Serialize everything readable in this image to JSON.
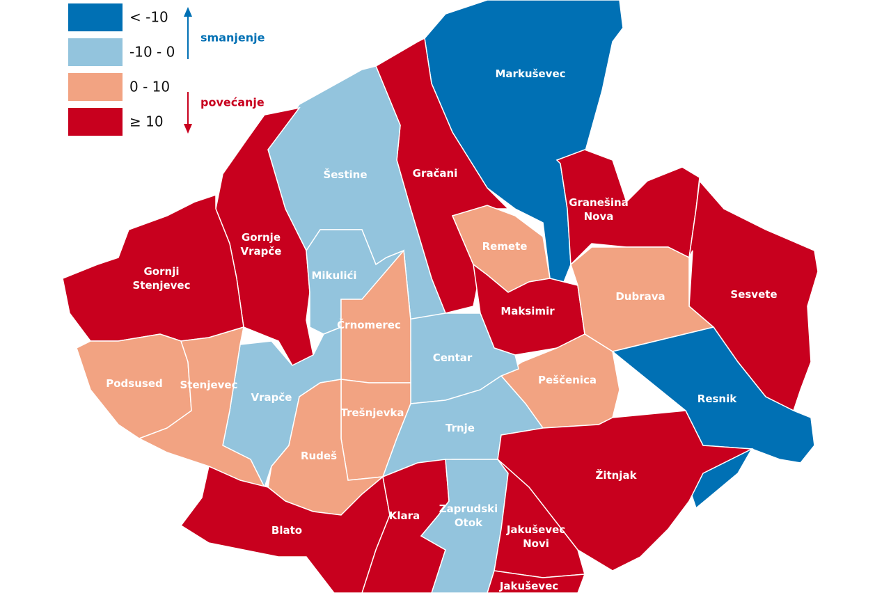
{
  "legend": {
    "items": [
      {
        "label": "< -10",
        "color": "#0070b4"
      },
      {
        "label": "-10 - 0",
        "color": "#93c4dd"
      },
      {
        "label": "0 - 10",
        "color": "#f2a382"
      },
      {
        "label": "≥ 10",
        "color": "#c8001e"
      }
    ],
    "decrease": "smanjenje",
    "increase": "povećanje"
  },
  "districts": [
    {
      "label": [
        "Markuševec"
      ],
      "color": "#0070b4"
    },
    {
      "label": [
        "Gračani"
      ],
      "color": "#c8001e"
    },
    {
      "label": [
        "Šestine"
      ],
      "color": "#93c4dd"
    },
    {
      "label": [
        "Gornje",
        "Vrapče"
      ],
      "color": "#c8001e"
    },
    {
      "label": [
        "Gornji",
        "Stenjevec"
      ],
      "color": "#c8001e"
    },
    {
      "label": [
        "Mikulići"
      ],
      "color": "#93c4dd"
    },
    {
      "label": [
        "Remete"
      ],
      "color": "#f2a382"
    },
    {
      "label": [
        "Maksimir"
      ],
      "color": "#c8001e"
    },
    {
      "label": [
        "Granešina",
        "Nova"
      ],
      "color": "#c8001e"
    },
    {
      "label": [
        "Sesvete"
      ],
      "color": "#c8001e"
    },
    {
      "label": [
        "Dubrava"
      ],
      "color": "#f2a382"
    },
    {
      "label": [
        "Resnik"
      ],
      "color": "#0070b4"
    },
    {
      "label": [
        "Peščenica"
      ],
      "color": "#f2a382"
    },
    {
      "label": [
        "Centar"
      ],
      "color": "#93c4dd"
    },
    {
      "label": [
        "Črnomerec"
      ],
      "color": "#f2a382"
    },
    {
      "label": [
        "Trešnjevka"
      ],
      "color": "#f2a382"
    },
    {
      "label": [
        "Trnje"
      ],
      "color": "#93c4dd"
    },
    {
      "label": [
        "Vrapče"
      ],
      "color": "#93c4dd"
    },
    {
      "label": [
        "Rudeš"
      ],
      "color": "#f2a382"
    },
    {
      "label": [
        "Podsused"
      ],
      "color": "#f2a382"
    },
    {
      "label": [
        "Stenjevec"
      ],
      "color": "#f2a382"
    },
    {
      "label": [
        "Žitnjak"
      ],
      "color": "#c8001e"
    },
    {
      "label": [
        "Blato"
      ],
      "color": "#c8001e"
    },
    {
      "label": [
        "Klara"
      ],
      "color": "#c8001e"
    },
    {
      "label": [
        "Zaprudski",
        "Otok"
      ],
      "color": "#93c4dd"
    },
    {
      "label": [
        "Jakuševec",
        "Novi"
      ],
      "color": "#c8001e"
    },
    {
      "label": [
        "Jakuševec"
      ],
      "color": "#c8001e"
    }
  ]
}
